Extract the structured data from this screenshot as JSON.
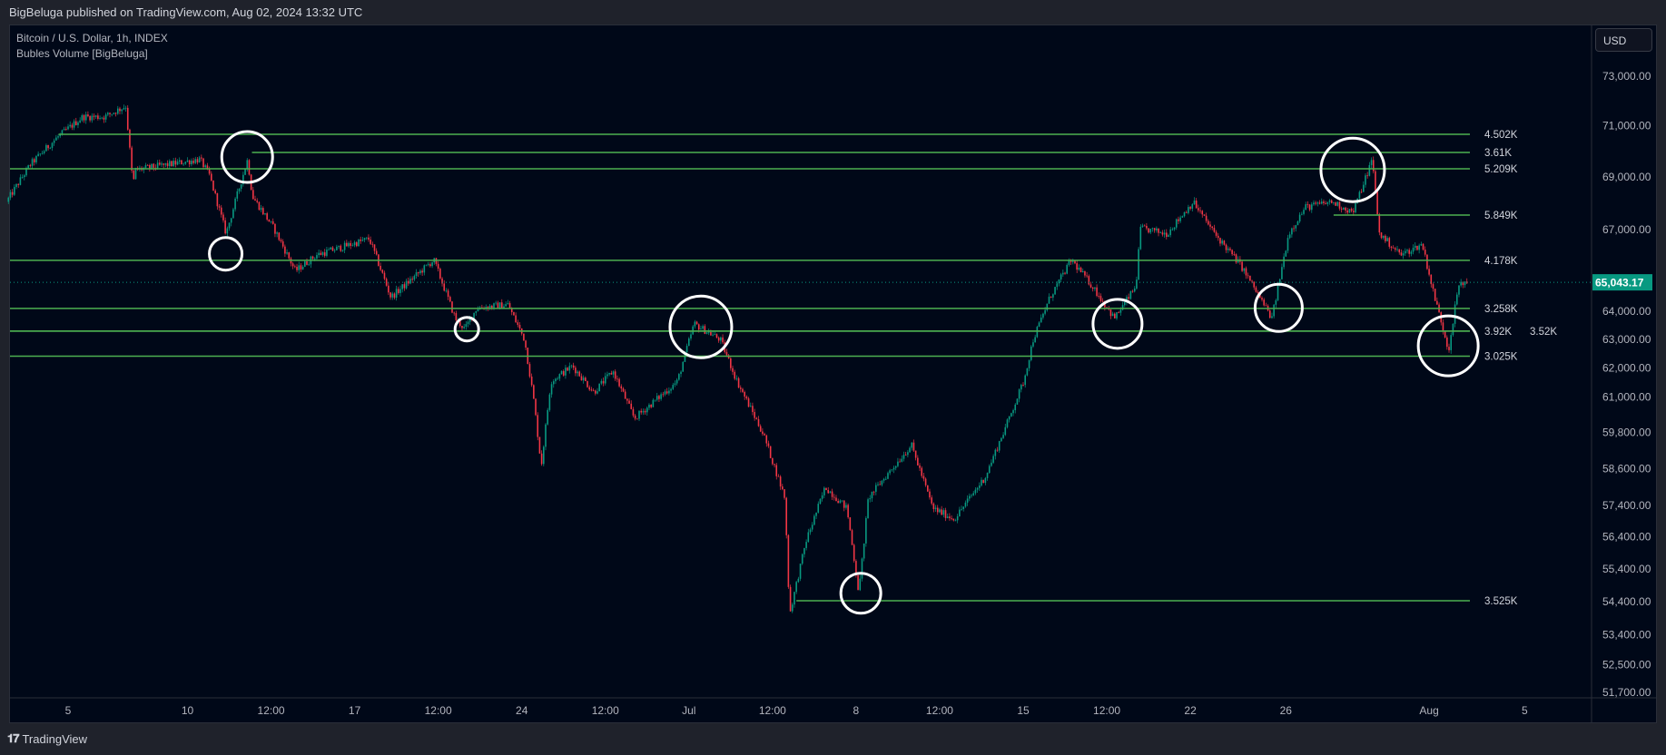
{
  "header": {
    "published": "BigBeluga published on TradingView.com, Aug 02, 2024 13:32 UTC"
  },
  "legend": {
    "symbol": "Bitcoin / U.S. Dollar, 1h, INDEX",
    "indicator": "Bubles Volume [BigBeluga]"
  },
  "currency_button": "USD",
  "footer": {
    "brand": "TradingView",
    "logo": "TV"
  },
  "colors": {
    "up": "#089981",
    "down": "#f23645",
    "level": "#4caf50",
    "bubble": "#ffffff",
    "last_price_bg": "#089981"
  },
  "chart_data": {
    "type": "candlestick",
    "title": "Bitcoin / U.S. Dollar, 1h, INDEX",
    "scale": "log",
    "ylim": [
      51700,
      73000
    ],
    "last_price": 65043.17,
    "last_price_label": "65,043.17",
    "price_ticks": [
      {
        "label": "73,000.00",
        "value": 73000
      },
      {
        "label": "71,000.00",
        "value": 71000
      },
      {
        "label": "69,000.00",
        "value": 69000
      },
      {
        "label": "67,000.00",
        "value": 67000
      },
      {
        "label": "64,000.00",
        "value": 64000
      },
      {
        "label": "63,000.00",
        "value": 63000
      },
      {
        "label": "62,000.00",
        "value": 62000
      },
      {
        "label": "61,000.00",
        "value": 61000
      },
      {
        "label": "59,800.00",
        "value": 59800
      },
      {
        "label": "58,600.00",
        "value": 58600
      },
      {
        "label": "57,400.00",
        "value": 57400
      },
      {
        "label": "56,400.00",
        "value": 56400
      },
      {
        "label": "55,400.00",
        "value": 55400
      },
      {
        "label": "54,400.00",
        "value": 54400
      },
      {
        "label": "53,400.00",
        "value": 53400
      },
      {
        "label": "52,500.00",
        "value": 52500
      },
      {
        "label": "51,700.00",
        "value": 51700
      }
    ],
    "time_ticks": [
      {
        "label": "5",
        "day": 5
      },
      {
        "label": "10",
        "day": 10
      },
      {
        "label": "12:00",
        "day": 13.5
      },
      {
        "label": "17",
        "day": 17
      },
      {
        "label": "12:00",
        "day": 20.5
      },
      {
        "label": "24",
        "day": 24
      },
      {
        "label": "12:00",
        "day": 27.5
      },
      {
        "label": "Jul",
        "day": 31
      },
      {
        "label": "12:00",
        "day": 34.5
      },
      {
        "label": "8",
        "day": 38
      },
      {
        "label": "12:00",
        "day": 41.5
      },
      {
        "label": "15",
        "day": 45
      },
      {
        "label": "12:00",
        "day": 48.5
      },
      {
        "label": "22",
        "day": 52
      },
      {
        "label": "26",
        "day": 56
      },
      {
        "label": "Aug",
        "day": 62
      },
      {
        "label": "5",
        "day": 66
      }
    ],
    "day_unit": "days since May 31, 2024",
    "price_path": [
      [
        2.5,
        68040
      ],
      [
        3.5,
        69480
      ],
      [
        4.6,
        70520
      ],
      [
        5.7,
        71360
      ],
      [
        6.6,
        71360
      ],
      [
        7.5,
        71790
      ],
      [
        7.8,
        68660
      ],
      [
        7.9,
        69270
      ],
      [
        10.6,
        69680
      ],
      [
        11.0,
        69070
      ],
      [
        11.7,
        66840
      ],
      [
        12.6,
        69680
      ],
      [
        12.8,
        68250
      ],
      [
        13.7,
        67040
      ],
      [
        14.6,
        65460
      ],
      [
        15.5,
        66050
      ],
      [
        17.7,
        66650
      ],
      [
        18.6,
        64500
      ],
      [
        20.4,
        65860
      ],
      [
        21.3,
        63740
      ],
      [
        21.7,
        63360
      ],
      [
        22.2,
        64120
      ],
      [
        23.5,
        64240
      ],
      [
        24.2,
        62990
      ],
      [
        24.6,
        60800
      ],
      [
        24.9,
        58680
      ],
      [
        25.3,
        61530
      ],
      [
        26.2,
        62070
      ],
      [
        27.1,
        61160
      ],
      [
        27.9,
        61890
      ],
      [
        28.8,
        60270
      ],
      [
        30.6,
        61530
      ],
      [
        31.3,
        63550
      ],
      [
        32.4,
        62990
      ],
      [
        33.1,
        61530
      ],
      [
        34.2,
        59740
      ],
      [
        35.1,
        57650
      ],
      [
        35.3,
        54000
      ],
      [
        36.0,
        56300
      ],
      [
        36.8,
        58000
      ],
      [
        37.7,
        57310
      ],
      [
        38.2,
        54650
      ],
      [
        38.6,
        57650
      ],
      [
        40.4,
        59380
      ],
      [
        41.3,
        57310
      ],
      [
        42.2,
        56970
      ],
      [
        43.5,
        58340
      ],
      [
        44.4,
        60090
      ],
      [
        45.1,
        61530
      ],
      [
        45.5,
        62990
      ],
      [
        46.2,
        64500
      ],
      [
        47.1,
        65860
      ],
      [
        48.0,
        64880
      ],
      [
        48.9,
        63740
      ],
      [
        49.8,
        64880
      ],
      [
        50.0,
        67040
      ],
      [
        51.1,
        66840
      ],
      [
        52.2,
        68040
      ],
      [
        53.1,
        66840
      ],
      [
        54.2,
        65660
      ],
      [
        55.5,
        63740
      ],
      [
        56.2,
        66840
      ],
      [
        56.9,
        67840
      ],
      [
        58.0,
        68040
      ],
      [
        58.9,
        67640
      ],
      [
        59.7,
        69680
      ],
      [
        60.0,
        66840
      ],
      [
        60.9,
        66050
      ],
      [
        61.8,
        66450
      ],
      [
        62.2,
        64880
      ],
      [
        62.9,
        62620
      ],
      [
        63.3,
        64880
      ],
      [
        63.6,
        65043
      ]
    ],
    "levels": [
      {
        "label": "4.502K",
        "price": 70666,
        "start_day": 4.6
      },
      {
        "label": "3.61K",
        "price": 69950,
        "start_day": 12.7
      },
      {
        "label": "5.209K",
        "price": 69313,
        "start_day": 2.5
      },
      {
        "label": "5.849K",
        "price": 67540,
        "start_day": 58.0
      },
      {
        "label": "4.178K",
        "price": 65850,
        "start_day": 2.5
      },
      {
        "label": "3.258K",
        "price": 64100,
        "start_day": 2.5
      },
      {
        "label": "3.92K",
        "price": 63290,
        "start_day": 2.5
      },
      {
        "label": "3.52K",
        "price": 63290,
        "start_day": 2.5
      },
      {
        "label": "3.025K",
        "price": 62410,
        "start_day": 2.5
      },
      {
        "label": "3.525K",
        "price": 54420,
        "start_day": 35.5
      }
    ],
    "bubbles": [
      {
        "day": 12.5,
        "price": 69770
      },
      {
        "day": 11.6,
        "price": 66090
      },
      {
        "day": 21.7,
        "price": 63360
      },
      {
        "day": 31.5,
        "price": 63440
      },
      {
        "day": 38.2,
        "price": 54650
      },
      {
        "day": 48.95,
        "price": 63550
      },
      {
        "day": 55.7,
        "price": 64120
      },
      {
        "day": 58.8,
        "price": 69270
      },
      {
        "day": 62.8,
        "price": 62770
      }
    ]
  }
}
